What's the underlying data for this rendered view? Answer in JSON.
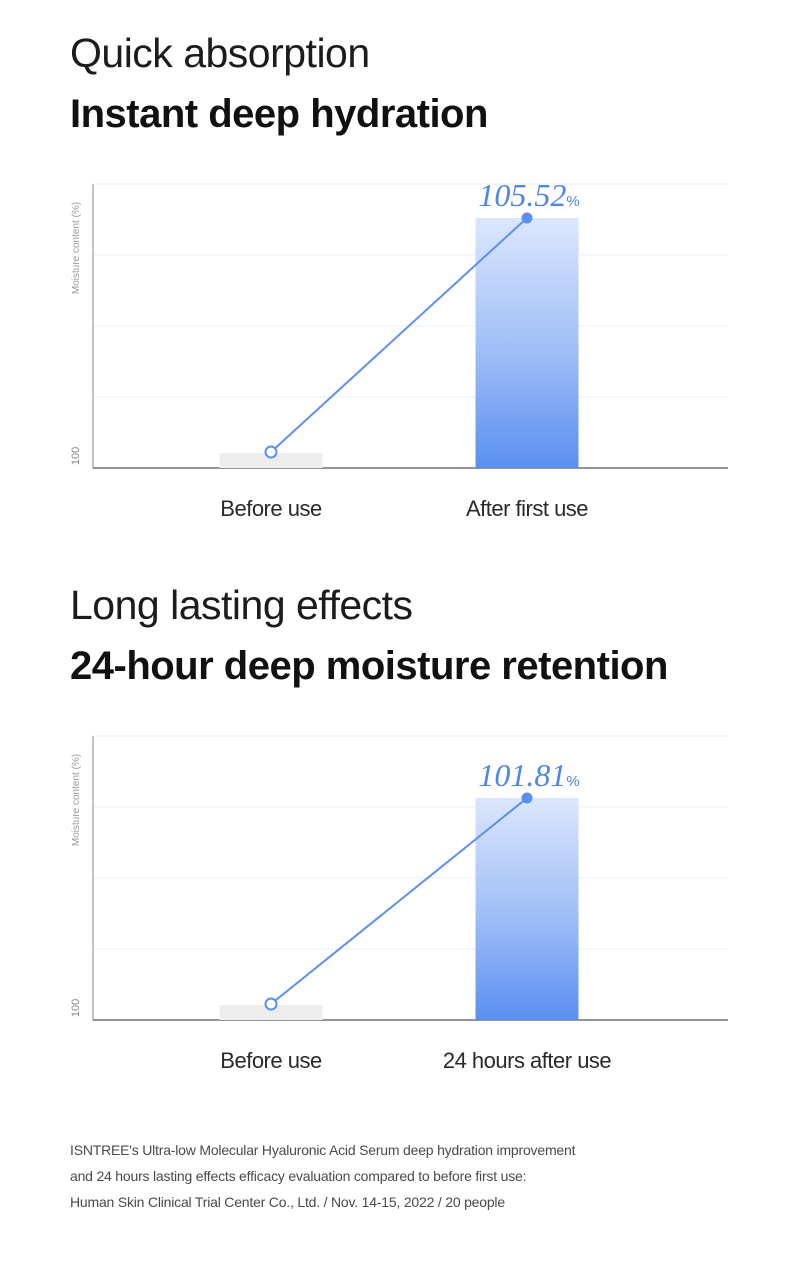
{
  "sections": [
    {
      "subtitle": "Quick absorption",
      "title": "Instant deep hydration"
    },
    {
      "subtitle": "Long lasting effects",
      "title": "24-hour deep moisture retention"
    }
  ],
  "chart_data": [
    {
      "type": "bar",
      "ylabel": "Moisture content (%)",
      "y_tick_labels": [
        "100"
      ],
      "categories": [
        "Before use",
        "After first use"
      ],
      "values": [
        100,
        105.52
      ],
      "value_label": "105.52",
      "value_unit": "%",
      "grid": true,
      "colors": {
        "bar": "#5b8ff0",
        "bar_top": "#dbe7fd",
        "baseline_bar": "#eeeeee",
        "line": "#5b8ff0",
        "label": "#4f86e6"
      }
    },
    {
      "type": "bar",
      "ylabel": "Moisture content (%)",
      "y_tick_labels": [
        "100"
      ],
      "categories": [
        "Before use",
        "24 hours after use"
      ],
      "values": [
        100,
        101.81
      ],
      "value_label": "101.81",
      "value_unit": "%",
      "grid": true,
      "colors": {
        "bar": "#5b8ff0",
        "bar_top": "#dbe7fd",
        "baseline_bar": "#eeeeee",
        "line": "#5b8ff0",
        "label": "#4f86e6"
      }
    }
  ],
  "footnote": [
    "ISNTREE's Ultra-low Molecular Hyaluronic Acid Serum deep hydration improvement",
    "and 24 hours lasting effects efficacy evaluation compared to before first use:",
    "Human Skin Clinical Trial Center Co., Ltd. / Nov. 14-15, 2022 / 20 people"
  ]
}
